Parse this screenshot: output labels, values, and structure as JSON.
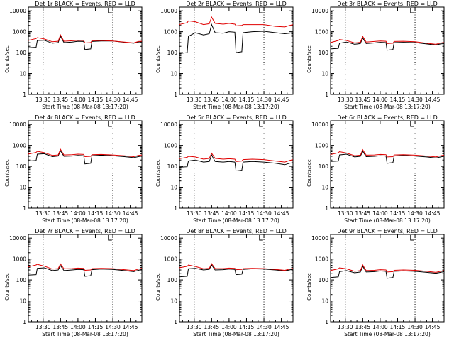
{
  "colors": {
    "events": "#000000",
    "lld": "#e00000",
    "axes": "#000000",
    "background": "#ffffff"
  },
  "chart_data": [
    {
      "type": "line",
      "title": "Det 1r BLACK = Events, RED = LLD",
      "xlabel": "Start Time (08-Mar-08 13:17:20)",
      "ylabel": "Counts/sec",
      "y_scale": "log",
      "ylim": [
        1,
        15000
      ],
      "xlim": [
        "13:17:20",
        "14:55:00"
      ],
      "x_tick_labels": [
        "13:30",
        "13:45",
        "14:00",
        "14:15",
        "14:30",
        "14:45"
      ],
      "y_tick_labels": [
        "1",
        "10",
        "100",
        "1000",
        "10000"
      ],
      "vertical_markers": [
        "13:30",
        "14:30"
      ],
      "x": [
        "13:17",
        "13:24",
        "13:25",
        "13:31",
        "13:38",
        "13:43",
        "13:45",
        "13:48",
        "13:55",
        "14:00",
        "14:05",
        "14:06",
        "14:11",
        "14:12",
        "14:20",
        "14:30",
        "14:40",
        "14:48",
        "14:52",
        "14:55"
      ],
      "series": [
        {
          "name": "Events",
          "color": "#000000",
          "values": [
            170,
            180,
            380,
            390,
            280,
            300,
            600,
            300,
            320,
            350,
            340,
            140,
            150,
            340,
            360,
            360,
            310,
            280,
            320,
            330
          ]
        },
        {
          "name": "LLD",
          "color": "#e00000",
          "values": [
            380,
            470,
            520,
            450,
            330,
            350,
            700,
            350,
            370,
            390,
            380,
            290,
            300,
            370,
            380,
            360,
            320,
            290,
            340,
            350
          ]
        }
      ]
    },
    {
      "type": "line",
      "title": "Det 2r BLACK = Events, RED = LLD",
      "xlabel": "Start Time (08-Mar-08 13:17:20)",
      "ylabel": "Counts/sec",
      "y_scale": "log",
      "ylim": [
        1,
        15000
      ],
      "xlim": [
        "13:17:20",
        "14:55:00"
      ],
      "x_tick_labels": [
        "13:30",
        "13:45",
        "14:00",
        "14:15",
        "14:30",
        "14:45"
      ],
      "y_tick_labels": [
        "1",
        "10",
        "100",
        "1000",
        "10000"
      ],
      "vertical_markers": [
        "13:30",
        "14:30"
      ],
      "x": [
        "13:17",
        "13:24",
        "13:25",
        "13:31",
        "13:38",
        "13:43",
        "13:45",
        "13:48",
        "13:55",
        "14:00",
        "14:05",
        "14:06",
        "14:11",
        "14:12",
        "14:20",
        "14:30",
        "14:40",
        "14:48",
        "14:52",
        "14:55"
      ],
      "series": [
        {
          "name": "Events",
          "color": "#000000",
          "values": [
            90,
            100,
            600,
            900,
            700,
            800,
            2200,
            900,
            850,
            1000,
            950,
            100,
            110,
            900,
            1000,
            1050,
            900,
            800,
            850,
            900
          ]
        },
        {
          "name": "LLD",
          "color": "#e00000",
          "values": [
            2200,
            2700,
            3300,
            3000,
            2200,
            2400,
            5000,
            2500,
            2300,
            2500,
            2300,
            1900,
            2000,
            2200,
            2200,
            2200,
            1800,
            1700,
            2000,
            2200
          ]
        }
      ]
    },
    {
      "type": "line",
      "title": "Det 3r BLACK = Events, RED = LLD",
      "xlabel": "Start Time (08-Mar-08 13:17:20)",
      "ylabel": "Counts/sec",
      "y_scale": "log",
      "ylim": [
        1,
        15000
      ],
      "xlim": [
        "13:17:20",
        "14:55:00"
      ],
      "x_tick_labels": [
        "13:30",
        "13:45",
        "14:00",
        "14:15",
        "14:30",
        "14:45"
      ],
      "y_tick_labels": [
        "1",
        "10",
        "100",
        "1000",
        "10000"
      ],
      "vertical_markers": [
        "13:30",
        "14:30"
      ],
      "x": [
        "13:17",
        "13:24",
        "13:25",
        "13:31",
        "13:38",
        "13:43",
        "13:45",
        "13:48",
        "13:55",
        "14:00",
        "14:05",
        "14:06",
        "14:11",
        "14:12",
        "14:20",
        "14:30",
        "14:40",
        "14:48",
        "14:52",
        "14:55"
      ],
      "series": [
        {
          "name": "Events",
          "color": "#000000",
          "values": [
            150,
            160,
            280,
            320,
            250,
            270,
            500,
            270,
            290,
            310,
            300,
            130,
            140,
            300,
            310,
            300,
            260,
            230,
            260,
            270
          ]
        },
        {
          "name": "LLD",
          "color": "#e00000",
          "values": [
            300,
            380,
            420,
            380,
            290,
            310,
            600,
            320,
            340,
            360,
            350,
            270,
            280,
            340,
            350,
            330,
            280,
            250,
            290,
            300
          ]
        }
      ]
    },
    {
      "type": "line",
      "title": "Det 4r BLACK = Events, RED = LLD",
      "xlabel": "Start Time (08-Mar-08 13:17:20)",
      "ylabel": "Counts/sec",
      "y_scale": "log",
      "ylim": [
        1,
        15000
      ],
      "xlim": [
        "13:17:20",
        "14:55:00"
      ],
      "x_tick_labels": [
        "13:30",
        "13:45",
        "14:00",
        "14:15",
        "14:30",
        "14:45"
      ],
      "y_tick_labels": [
        "1",
        "10",
        "100",
        "1000",
        "10000"
      ],
      "vertical_markers": [
        "13:30",
        "14:30"
      ],
      "x": [
        "13:17",
        "13:24",
        "13:25",
        "13:31",
        "13:38",
        "13:43",
        "13:45",
        "13:48",
        "13:55",
        "14:00",
        "14:05",
        "14:06",
        "14:11",
        "14:12",
        "14:20",
        "14:30",
        "14:40",
        "14:48",
        "14:52",
        "14:55"
      ],
      "series": [
        {
          "name": "Events",
          "color": "#000000",
          "values": [
            180,
            190,
            380,
            400,
            290,
            310,
            550,
            300,
            310,
            330,
            320,
            130,
            140,
            320,
            340,
            320,
            290,
            260,
            290,
            310
          ]
        },
        {
          "name": "LLD",
          "color": "#e00000",
          "values": [
            380,
            460,
            520,
            450,
            330,
            350,
            650,
            350,
            360,
            380,
            370,
            290,
            300,
            360,
            370,
            350,
            320,
            290,
            330,
            350
          ]
        }
      ]
    },
    {
      "type": "line",
      "title": "Det 5r BLACK = Events, RED = LLD",
      "xlabel": "Start Time (08-Mar-08 13:17:20)",
      "ylabel": "Counts/sec",
      "y_scale": "log",
      "ylim": [
        1,
        15000
      ],
      "xlim": [
        "13:17:20",
        "14:55:00"
      ],
      "x_tick_labels": [
        "13:30",
        "13:45",
        "14:00",
        "14:15",
        "14:30",
        "14:45"
      ],
      "y_tick_labels": [
        "1",
        "10",
        "100",
        "1000",
        "10000"
      ],
      "vertical_markers": [
        "13:30",
        "14:30"
      ],
      "x": [
        "13:17",
        "13:24",
        "13:25",
        "13:31",
        "13:38",
        "13:43",
        "13:45",
        "13:48",
        "13:55",
        "14:00",
        "14:05",
        "14:06",
        "14:11",
        "14:12",
        "14:20",
        "14:30",
        "14:40",
        "14:48",
        "14:52",
        "14:55"
      ],
      "series": [
        {
          "name": "Events",
          "color": "#000000",
          "values": [
            90,
            95,
            180,
            200,
            160,
            170,
            350,
            170,
            160,
            170,
            160,
            60,
            65,
            160,
            170,
            160,
            140,
            120,
            140,
            150
          ]
        },
        {
          "name": "LLD",
          "color": "#e00000",
          "values": [
            230,
            270,
            300,
            280,
            220,
            240,
            420,
            240,
            220,
            230,
            220,
            170,
            180,
            210,
            220,
            210,
            180,
            160,
            190,
            210
          ]
        }
      ]
    },
    {
      "type": "line",
      "title": "Det 6r BLACK = Events, RED = LLD",
      "xlabel": "Start Time (08-Mar-08 13:17:20)",
      "ylabel": "Counts/sec",
      "y_scale": "log",
      "ylim": [
        1,
        15000
      ],
      "xlim": [
        "13:17:20",
        "14:55:00"
      ],
      "x_tick_labels": [
        "13:30",
        "13:45",
        "14:00",
        "14:15",
        "14:30",
        "14:45"
      ],
      "y_tick_labels": [
        "1",
        "10",
        "100",
        "1000",
        "10000"
      ],
      "vertical_markers": [
        "13:30",
        "14:30"
      ],
      "x": [
        "13:17",
        "13:24",
        "13:25",
        "13:31",
        "13:38",
        "13:43",
        "13:45",
        "13:48",
        "13:55",
        "14:00",
        "14:05",
        "14:06",
        "14:11",
        "14:12",
        "14:20",
        "14:30",
        "14:40",
        "14:48",
        "14:52",
        "14:55"
      ],
      "series": [
        {
          "name": "Events",
          "color": "#000000",
          "values": [
            170,
            180,
            350,
            380,
            280,
            300,
            520,
            290,
            300,
            320,
            310,
            140,
            150,
            310,
            330,
            310,
            280,
            250,
            280,
            300
          ]
        },
        {
          "name": "LLD",
          "color": "#e00000",
          "values": [
            360,
            440,
            500,
            430,
            320,
            340,
            620,
            340,
            350,
            370,
            360,
            280,
            290,
            350,
            360,
            340,
            310,
            280,
            320,
            340
          ]
        }
      ]
    },
    {
      "type": "line",
      "title": "Det 7r BLACK = Events, RED = LLD",
      "xlabel": "Start Time (08-Mar-08 13:17:20)",
      "ylabel": "Counts/sec",
      "y_scale": "log",
      "ylim": [
        1,
        15000
      ],
      "xlim": [
        "13:17:20",
        "14:55:00"
      ],
      "x_tick_labels": [
        "13:30",
        "13:45",
        "14:00",
        "14:15",
        "14:30",
        "14:45"
      ],
      "y_tick_labels": [
        "1",
        "10",
        "100",
        "1000",
        "10000"
      ],
      "vertical_markers": [
        "13:30",
        "14:30"
      ],
      "x": [
        "13:17",
        "13:24",
        "13:25",
        "13:31",
        "13:38",
        "13:43",
        "13:45",
        "13:48",
        "13:55",
        "14:00",
        "14:05",
        "14:06",
        "14:11",
        "14:12",
        "14:20",
        "14:30",
        "14:40",
        "14:48",
        "14:52",
        "14:55"
      ],
      "series": [
        {
          "name": "Events",
          "color": "#000000",
          "values": [
            170,
            180,
            360,
            380,
            280,
            300,
            480,
            280,
            300,
            320,
            310,
            150,
            160,
            310,
            330,
            320,
            280,
            250,
            290,
            320
          ]
        },
        {
          "name": "LLD",
          "color": "#e00000",
          "values": [
            420,
            520,
            560,
            460,
            330,
            350,
            580,
            340,
            350,
            370,
            360,
            290,
            300,
            350,
            360,
            350,
            310,
            280,
            330,
            360
          ]
        }
      ]
    },
    {
      "type": "line",
      "title": "Det 8r BLACK = Events, RED = LLD",
      "xlabel": "Start Time (08-Mar-08 13:17:20)",
      "ylabel": "Counts/sec",
      "y_scale": "log",
      "ylim": [
        1,
        15000
      ],
      "xlim": [
        "13:17:20",
        "14:55:00"
      ],
      "x_tick_labels": [
        "13:30",
        "13:45",
        "14:00",
        "14:15",
        "14:30",
        "14:45"
      ],
      "y_tick_labels": [
        "1",
        "10",
        "100",
        "1000",
        "10000"
      ],
      "vertical_markers": [
        "13:30",
        "14:30"
      ],
      "x": [
        "13:17",
        "13:24",
        "13:25",
        "13:31",
        "13:38",
        "13:43",
        "13:45",
        "13:48",
        "13:55",
        "14:00",
        "14:05",
        "14:06",
        "14:11",
        "14:12",
        "14:20",
        "14:30",
        "14:40",
        "14:48",
        "14:52",
        "14:55"
      ],
      "series": [
        {
          "name": "Events",
          "color": "#000000",
          "values": [
            140,
            150,
            340,
            360,
            300,
            320,
            520,
            300,
            310,
            330,
            320,
            180,
            190,
            320,
            340,
            330,
            300,
            270,
            300,
            330
          ]
        },
        {
          "name": "LLD",
          "color": "#e00000",
          "values": [
            380,
            450,
            520,
            440,
            340,
            360,
            600,
            350,
            350,
            370,
            360,
            310,
            320,
            350,
            360,
            350,
            320,
            290,
            330,
            360
          ]
        }
      ]
    },
    {
      "type": "line",
      "title": "Det 9r BLACK = Events, RED = LLD",
      "xlabel": "Start Time (08-Mar-08 13:17:20)",
      "ylabel": "Counts/sec",
      "y_scale": "log",
      "ylim": [
        1,
        15000
      ],
      "xlim": [
        "13:17:20",
        "14:55:00"
      ],
      "x_tick_labels": [
        "13:30",
        "13:45",
        "14:00",
        "14:15",
        "14:30",
        "14:45"
      ],
      "y_tick_labels": [
        "1",
        "10",
        "100",
        "1000",
        "10000"
      ],
      "vertical_markers": [
        "13:30",
        "14:30"
      ],
      "x": [
        "13:17",
        "13:24",
        "13:25",
        "13:31",
        "13:38",
        "13:43",
        "13:45",
        "13:48",
        "13:55",
        "14:00",
        "14:05",
        "14:06",
        "14:11",
        "14:12",
        "14:20",
        "14:30",
        "14:40",
        "14:48",
        "14:52",
        "14:55"
      ],
      "series": [
        {
          "name": "Events",
          "color": "#000000",
          "values": [
            130,
            140,
            250,
            280,
            220,
            240,
            450,
            240,
            250,
            270,
            260,
            120,
            130,
            260,
            270,
            260,
            230,
            210,
            230,
            250
          ]
        },
        {
          "name": "LLD",
          "color": "#e00000",
          "values": [
            280,
            340,
            380,
            340,
            260,
            280,
            520,
            280,
            290,
            310,
            300,
            240,
            250,
            290,
            300,
            290,
            260,
            230,
            260,
            280
          ]
        }
      ]
    }
  ]
}
